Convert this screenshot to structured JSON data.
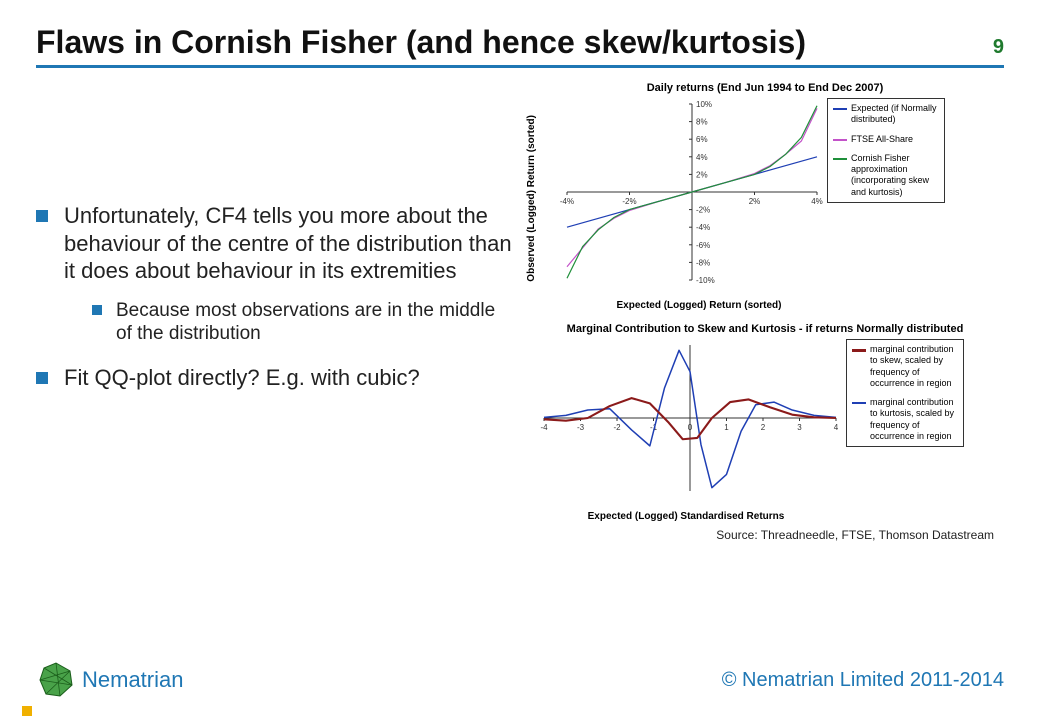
{
  "title": "Flaws in Cornish Fisher (and hence skew/kurtosis)",
  "page_number": "9",
  "accent_color": "#1f77b4",
  "page_number_color": "#1f7a2e",
  "bullets": {
    "b1": "Unfortunately, CF4 tells you more about the behaviour of the centre of the distribution than it does about behaviour in its extremities",
    "b1_sub": "Because most observations are in the middle of the distribution",
    "b2": "Fit QQ-plot directly? E.g. with cubic?"
  },
  "chart1": {
    "type": "line",
    "title": "Daily returns (End Jun 1994 to End Dec 2007)",
    "ylabel": "Observed (Logged) Return (sorted)",
    "xlabel": "Expected (Logged) Return (sorted)",
    "xlim": [
      -4,
      4
    ],
    "xtick_step": 2,
    "xtick_suffix": "%",
    "ylim": [
      -10,
      10
    ],
    "ytick_step": 2,
    "ytick_suffix": "%",
    "background_color": "#ffffff",
    "axis_color": "#333333",
    "tick_fontsize": 8,
    "label_fontsize": 10,
    "title_fontsize": 11,
    "line_width": 1.2,
    "series": {
      "expected": {
        "label": "Expected (if Normally distributed)",
        "color": "#1f3fb4",
        "points": [
          [
            -4,
            -4
          ],
          [
            4,
            4
          ]
        ]
      },
      "ftse": {
        "label": "FTSE All-Share",
        "color": "#c352c9",
        "points": [
          [
            -4,
            -8.5
          ],
          [
            -3,
            -4.2
          ],
          [
            -2.5,
            -3.0
          ],
          [
            -2,
            -2.1
          ],
          [
            -1,
            -1.0
          ],
          [
            0,
            0
          ],
          [
            1,
            1.0
          ],
          [
            2,
            2.1
          ],
          [
            2.5,
            3.0
          ],
          [
            3,
            4.3
          ],
          [
            3.5,
            5.8
          ],
          [
            4,
            9.5
          ]
        ]
      },
      "cornish": {
        "label": "Cornish Fisher approximation (incorporating skew and kurtosis)",
        "color": "#1f8f3a",
        "points": [
          [
            -4,
            -9.8
          ],
          [
            -3.5,
            -6.2
          ],
          [
            -3,
            -4.3
          ],
          [
            -2.5,
            -2.9
          ],
          [
            -2,
            -2.0
          ],
          [
            -1,
            -1.0
          ],
          [
            0,
            0
          ],
          [
            1,
            1.0
          ],
          [
            2,
            2.0
          ],
          [
            2.5,
            2.9
          ],
          [
            3,
            4.3
          ],
          [
            3.5,
            6.2
          ],
          [
            4,
            9.8
          ]
        ]
      }
    }
  },
  "chart2": {
    "type": "line",
    "title": "Marginal Contribution to Skew and Kurtosis - if returns Normally distributed",
    "xlabel": "Expected (Logged) Standardised Returns",
    "xlim": [
      -4,
      4
    ],
    "xtick_step": 1,
    "ylim": [
      -1.1,
      1.1
    ],
    "background_color": "#ffffff",
    "axis_color": "#333333",
    "title_fontsize": 11,
    "label_fontsize": 10,
    "line_width": 1.5,
    "series": {
      "skew": {
        "label": "marginal contribution to skew, scaled by frequency of occurrence in region",
        "color": "#8b1a1a",
        "points": [
          [
            -4,
            -0.02
          ],
          [
            -3.4,
            -0.04
          ],
          [
            -2.8,
            0.0
          ],
          [
            -2.2,
            0.18
          ],
          [
            -1.6,
            0.3
          ],
          [
            -1.1,
            0.22
          ],
          [
            -0.6,
            -0.06
          ],
          [
            -0.2,
            -0.32
          ],
          [
            0.2,
            -0.3
          ],
          [
            0.6,
            0.0
          ],
          [
            1.1,
            0.24
          ],
          [
            1.6,
            0.28
          ],
          [
            2.2,
            0.16
          ],
          [
            2.8,
            0.05
          ],
          [
            3.4,
            0.01
          ],
          [
            4,
            0.0
          ]
        ]
      },
      "kurt": {
        "label": "marginal contribution to kurtosis, scaled by frequency of occurrence in region",
        "color": "#1f3fb4",
        "points": [
          [
            -4,
            0.01
          ],
          [
            -3.4,
            0.04
          ],
          [
            -2.8,
            0.12
          ],
          [
            -2.2,
            0.14
          ],
          [
            -1.6,
            -0.18
          ],
          [
            -1.1,
            -0.42
          ],
          [
            -0.7,
            0.45
          ],
          [
            -0.3,
            1.02
          ],
          [
            0.0,
            0.7
          ],
          [
            0.3,
            -0.4
          ],
          [
            0.6,
            -1.05
          ],
          [
            1.0,
            -0.85
          ],
          [
            1.4,
            -0.2
          ],
          [
            1.8,
            0.2
          ],
          [
            2.3,
            0.24
          ],
          [
            2.8,
            0.12
          ],
          [
            3.4,
            0.04
          ],
          [
            4,
            0.01
          ]
        ]
      }
    }
  },
  "source": "Source: Threadneedle,  FTSE, Thomson Datastream",
  "footer": {
    "brand": "Nematrian",
    "copyright": "© Nematrian Limited 2011-2014"
  }
}
